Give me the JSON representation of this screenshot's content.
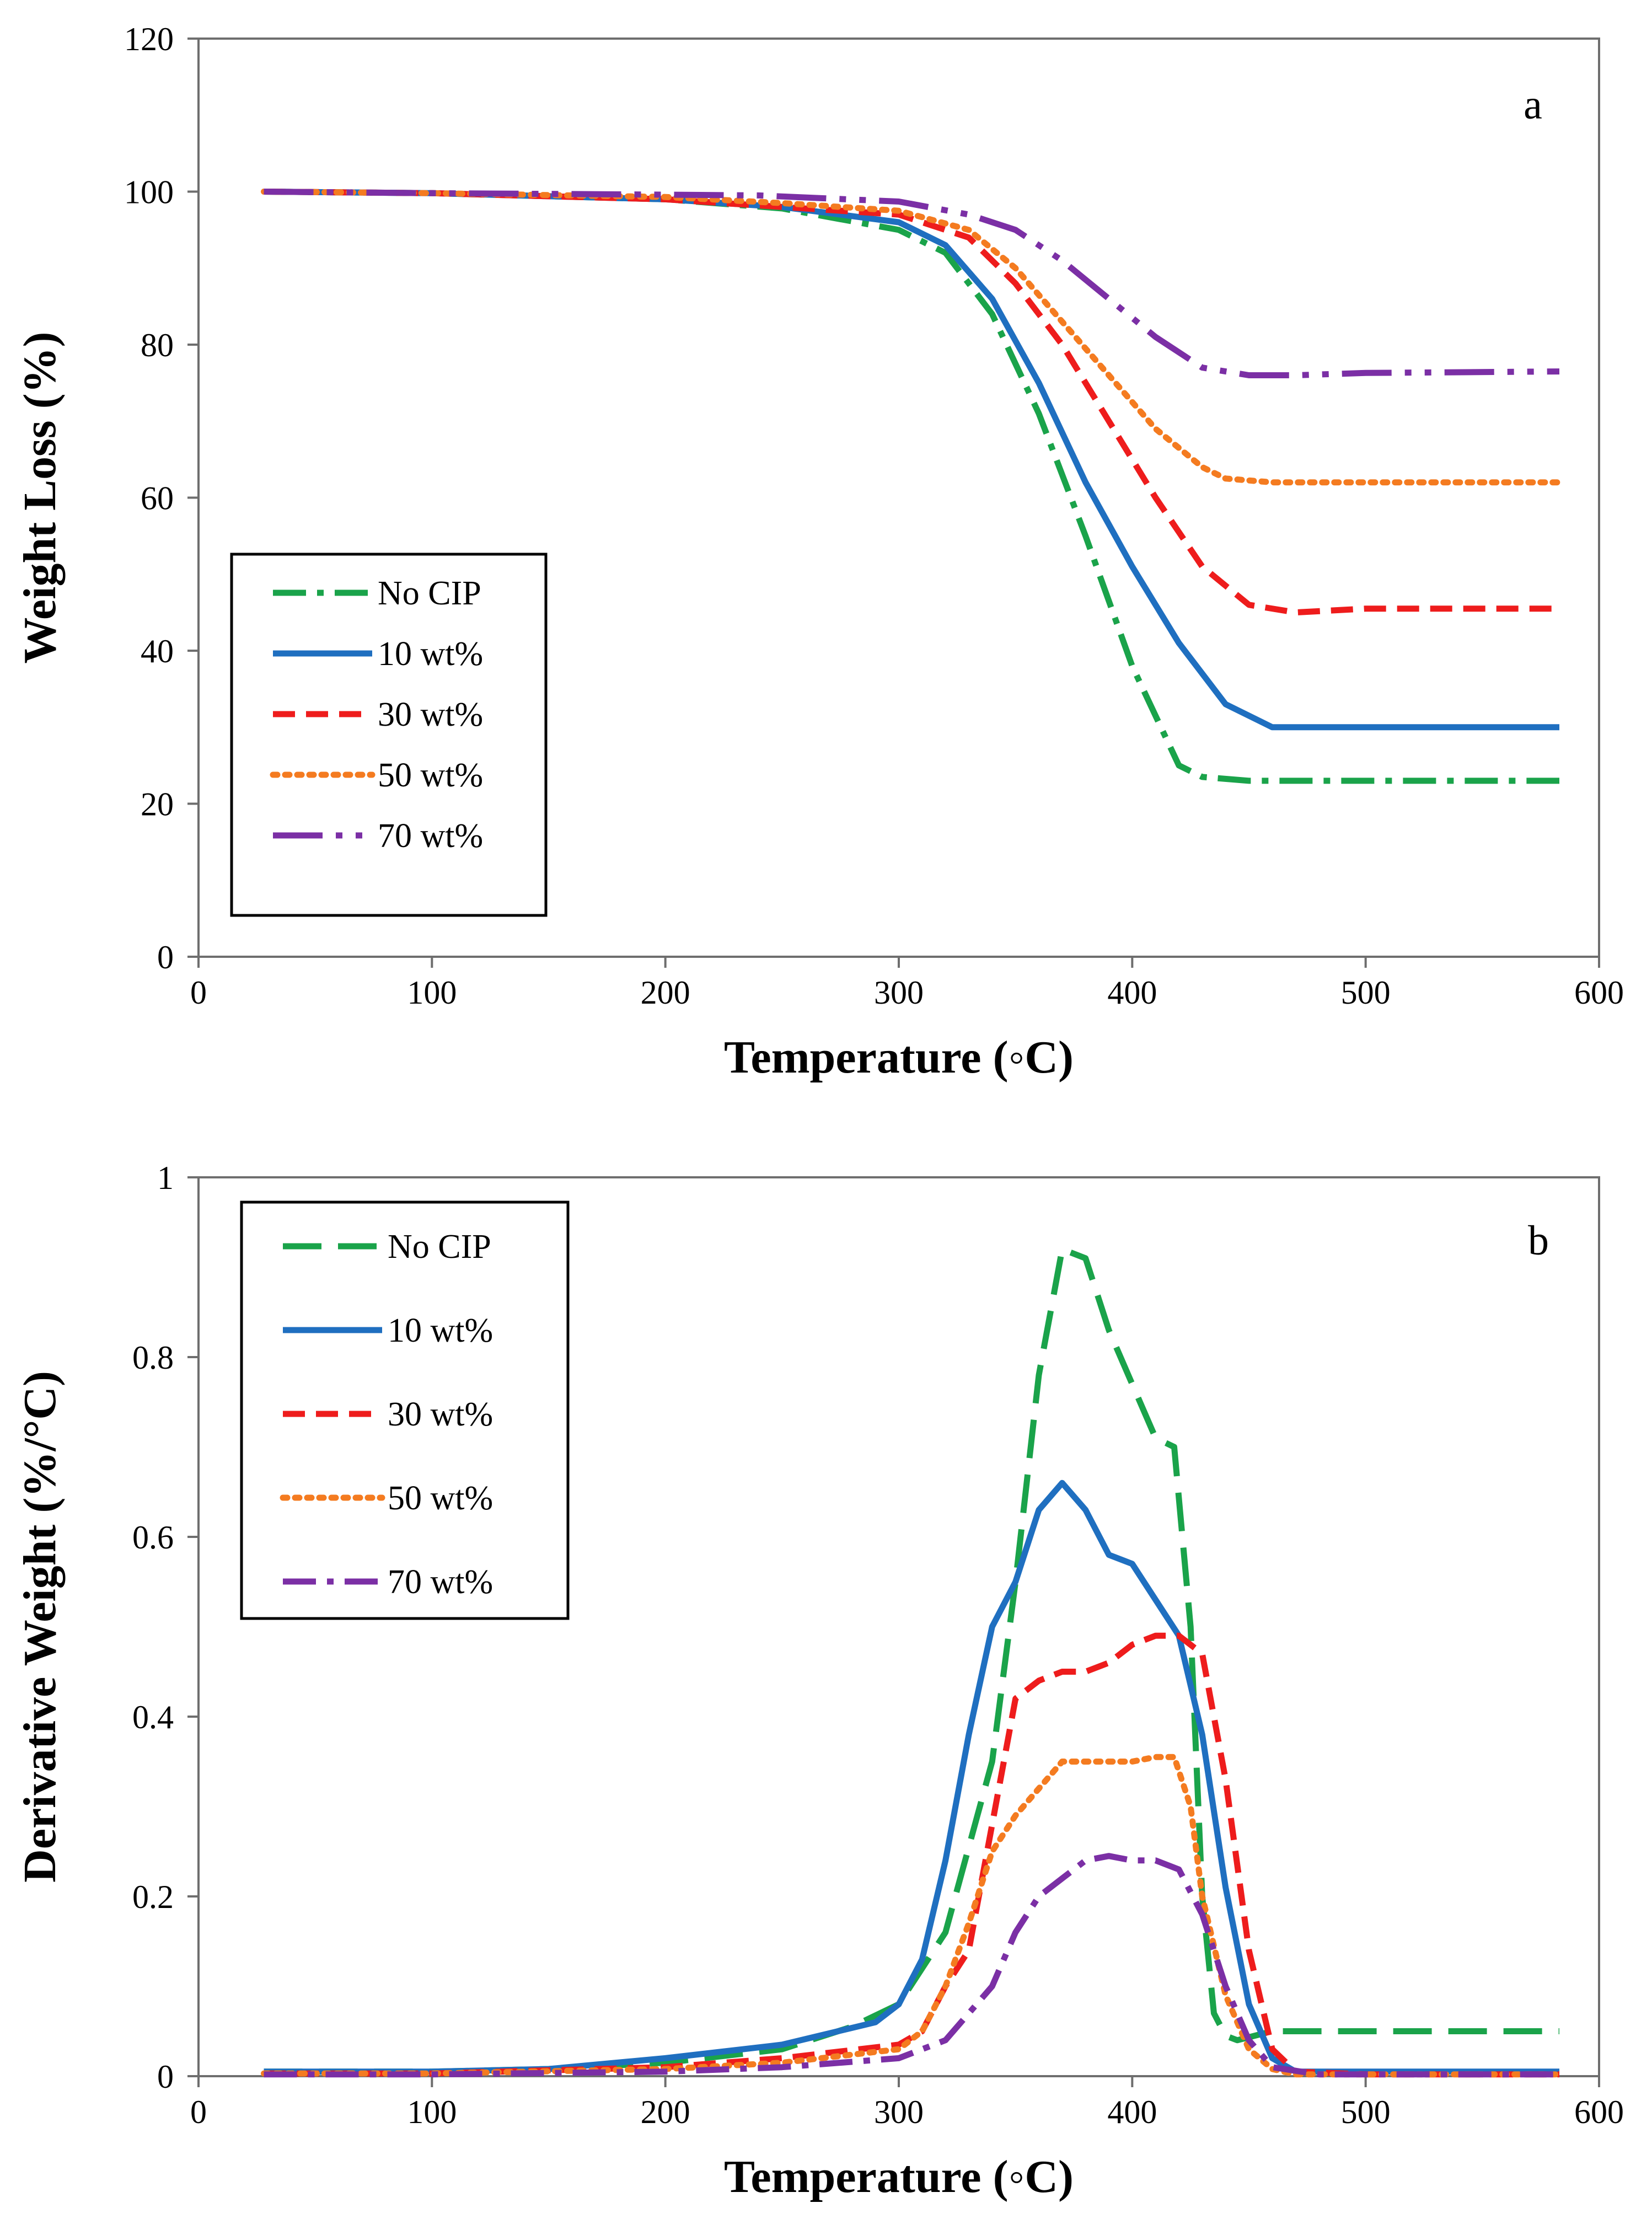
{
  "chart_data": [
    {
      "type": "line",
      "panel": "a",
      "xlabel": "Temperature (◦C)",
      "ylabel": "Weight Loss (%)",
      "xlim": [
        0,
        600
      ],
      "ylim": [
        0,
        120
      ],
      "xticks": [
        0,
        100,
        200,
        300,
        400,
        500,
        600
      ],
      "yticks": [
        0,
        20,
        40,
        60,
        80,
        100,
        120
      ],
      "grid": false,
      "legend_position": "bottom-left",
      "series": [
        {
          "name": "No CIP",
          "color": "#1aa34a",
          "dash": "dashdot",
          "x": [
            28,
            100,
            200,
            250,
            300,
            320,
            340,
            360,
            380,
            400,
            420,
            430,
            450,
            500,
            583
          ],
          "y": [
            100,
            99.8,
            99,
            97.8,
            95,
            92,
            84,
            71,
            55,
            38,
            25,
            23.5,
            23,
            23,
            23
          ]
        },
        {
          "name": "10 wt%",
          "color": "#1f6fc0",
          "dash": "solid",
          "x": [
            28,
            100,
            200,
            250,
            300,
            320,
            340,
            360,
            380,
            400,
            420,
            440,
            460,
            480,
            583
          ],
          "y": [
            100,
            99.8,
            99,
            98,
            96,
            93,
            86,
            75,
            62,
            51,
            41,
            33,
            30,
            30,
            30
          ]
        },
        {
          "name": "30 wt%",
          "color": "#ee1c1c",
          "dash": "dash",
          "x": [
            28,
            100,
            200,
            250,
            300,
            330,
            350,
            370,
            390,
            410,
            430,
            450,
            470,
            500,
            583
          ],
          "y": [
            100,
            99.8,
            99,
            98,
            97,
            94,
            88,
            80,
            70,
            60,
            51,
            46,
            45,
            45.5,
            45.5
          ]
        },
        {
          "name": "50 wt%",
          "color": "#f47b20",
          "dash": "dot",
          "x": [
            28,
            100,
            200,
            250,
            300,
            330,
            350,
            370,
            390,
            410,
            430,
            440,
            460,
            500,
            583
          ],
          "y": [
            100,
            99.8,
            99.3,
            98.5,
            97.5,
            95,
            90,
            83,
            76,
            69,
            64,
            62.5,
            62,
            62,
            62
          ]
        },
        {
          "name": "70 wt%",
          "color": "#7b2fa5",
          "dash": "longdashdotdot",
          "x": [
            28,
            100,
            200,
            240,
            300,
            330,
            350,
            370,
            390,
            410,
            430,
            450,
            470,
            500,
            583
          ],
          "y": [
            100,
            99.8,
            99.6,
            99.5,
            98.7,
            97,
            95,
            91,
            86,
            81,
            77,
            76,
            76,
            76.3,
            76.5
          ]
        }
      ],
      "annotations": [
        "a"
      ]
    },
    {
      "type": "line",
      "panel": "b",
      "xlabel": "Temperature (◦C)",
      "ylabel": "Derivative Weight (%/°C)",
      "xlim": [
        0,
        600
      ],
      "ylim": [
        0,
        1
      ],
      "xticks": [
        0,
        100,
        200,
        300,
        400,
        500,
        600
      ],
      "yticks": [
        0,
        0.2,
        0.4,
        0.6,
        0.8,
        1
      ],
      "grid": false,
      "legend_position": "top-left",
      "series": [
        {
          "name": "No CIP",
          "color": "#1aa34a",
          "dash": "longdash",
          "x": [
            28,
            100,
            150,
            200,
            250,
            280,
            300,
            320,
            340,
            350,
            360,
            370,
            380,
            390,
            400,
            410,
            418,
            425,
            430,
            435,
            440,
            445,
            460,
            500,
            583
          ],
          "y": [
            0.005,
            0.005,
            0.008,
            0.015,
            0.03,
            0.055,
            0.08,
            0.16,
            0.35,
            0.55,
            0.78,
            0.92,
            0.91,
            0.83,
            0.77,
            0.71,
            0.7,
            0.5,
            0.2,
            0.07,
            0.045,
            0.04,
            0.05,
            0.05,
            0.05
          ]
        },
        {
          "name": "10 wt%",
          "color": "#1f6fc0",
          "dash": "solid",
          "x": [
            28,
            100,
            150,
            200,
            250,
            290,
            300,
            310,
            320,
            330,
            340,
            350,
            360,
            370,
            380,
            390,
            400,
            410,
            420,
            430,
            440,
            450,
            460,
            470,
            500,
            583
          ],
          "y": [
            0.005,
            0.005,
            0.008,
            0.02,
            0.035,
            0.06,
            0.08,
            0.13,
            0.24,
            0.38,
            0.5,
            0.55,
            0.63,
            0.66,
            0.63,
            0.58,
            0.57,
            0.53,
            0.49,
            0.38,
            0.21,
            0.08,
            0.02,
            0.005,
            0.005,
            0.005
          ]
        },
        {
          "name": "30 wt%",
          "color": "#ee1c1c",
          "dash": "dash",
          "x": [
            28,
            100,
            200,
            250,
            300,
            310,
            320,
            330,
            340,
            350,
            360,
            370,
            380,
            390,
            400,
            410,
            420,
            430,
            440,
            450,
            460,
            470,
            500,
            583
          ],
          "y": [
            0.003,
            0.003,
            0.01,
            0.02,
            0.035,
            0.05,
            0.1,
            0.14,
            0.28,
            0.42,
            0.44,
            0.45,
            0.45,
            0.46,
            0.48,
            0.49,
            0.49,
            0.47,
            0.33,
            0.14,
            0.03,
            0.005,
            0.002,
            0.002
          ]
        },
        {
          "name": "50 wt%",
          "color": "#f47b20",
          "dash": "dot",
          "x": [
            28,
            100,
            200,
            250,
            300,
            310,
            320,
            330,
            340,
            350,
            360,
            370,
            380,
            390,
            400,
            410,
            418,
            425,
            430,
            440,
            450,
            460,
            470,
            500,
            583
          ],
          "y": [
            0.003,
            0.003,
            0.008,
            0.015,
            0.03,
            0.05,
            0.1,
            0.17,
            0.25,
            0.29,
            0.32,
            0.35,
            0.35,
            0.35,
            0.35,
            0.355,
            0.355,
            0.3,
            0.2,
            0.09,
            0.03,
            0.008,
            0.002,
            0.002,
            0.002
          ]
        },
        {
          "name": "70 wt%",
          "color": "#7b2fa5",
          "dash": "dashdot",
          "x": [
            28,
            100,
            200,
            250,
            300,
            320,
            340,
            350,
            360,
            370,
            380,
            390,
            400,
            410,
            420,
            430,
            440,
            450,
            460,
            480,
            500,
            583
          ],
          "y": [
            0.002,
            0.002,
            0.005,
            0.01,
            0.02,
            0.04,
            0.1,
            0.16,
            0.2,
            0.22,
            0.24,
            0.245,
            0.24,
            0.24,
            0.23,
            0.18,
            0.1,
            0.04,
            0.01,
            0.002,
            0.002,
            0.002
          ]
        }
      ],
      "annotations": [
        "b"
      ]
    }
  ]
}
